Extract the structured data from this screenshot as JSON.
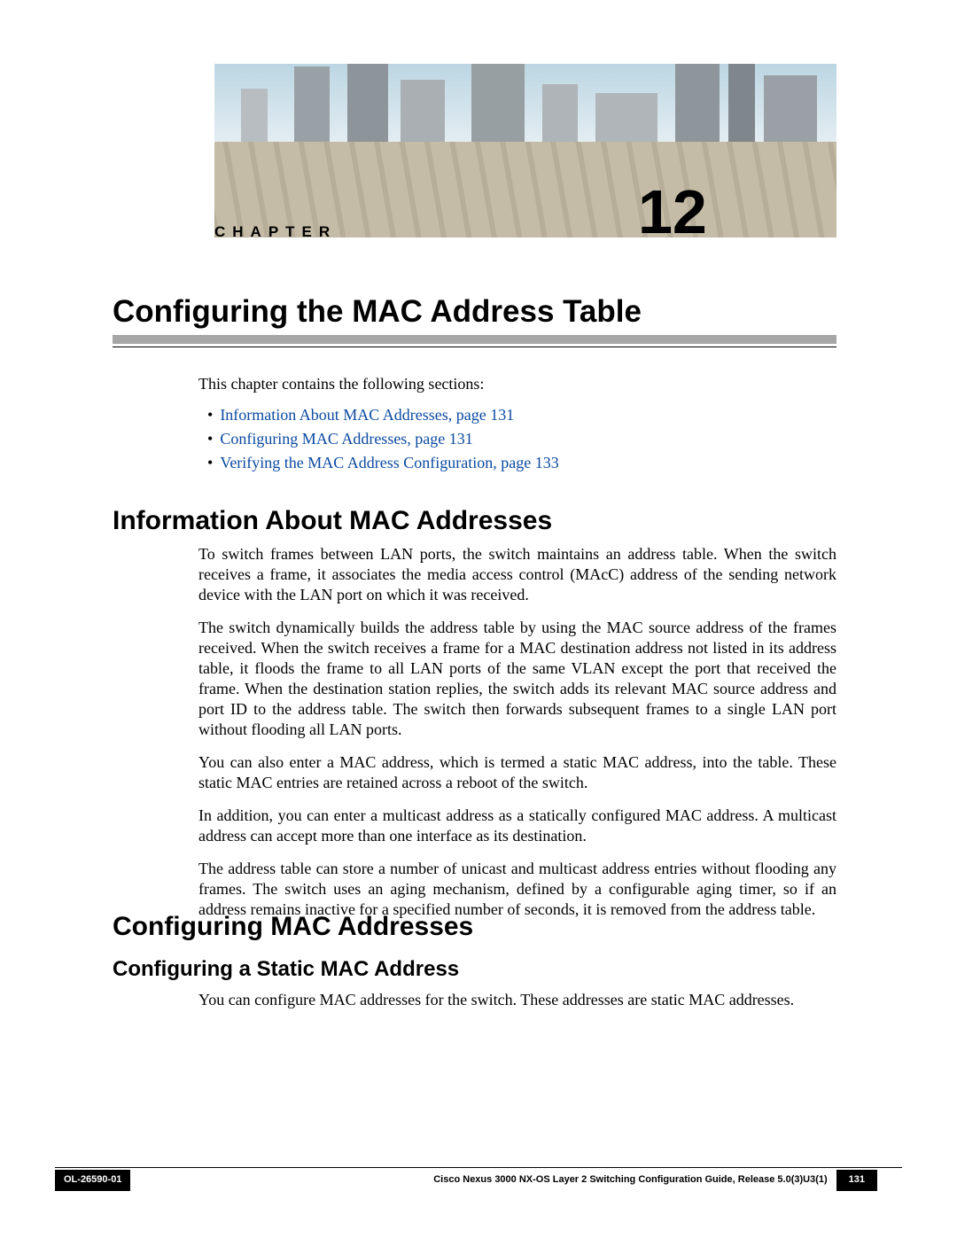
{
  "chapter": {
    "label": "CHAPTER",
    "number": "12"
  },
  "title": "Configuring the MAC Address Table",
  "intro": "This chapter contains the following sections:",
  "toc": [
    {
      "text": "Information About MAC Addresses,  page  131"
    },
    {
      "text": "Configuring MAC Addresses,  page  131"
    },
    {
      "text": "Verifying the MAC Address Configuration,  page  133"
    }
  ],
  "section1": {
    "heading": "Information About MAC Addresses",
    "paragraphs": [
      "To switch frames between LAN ports, the switch maintains an address table. When the switch receives a frame, it associates the media access control (MAcC) address of the sending network device with the LAN port on which it was received.",
      "The switch dynamically builds the address table by using the MAC source address of the frames received. When the switch receives a frame for a MAC destination address not listed in its address table, it floods the frame to all LAN ports of the same VLAN except the port that received the frame. When the destination station replies, the switch adds its relevant MAC source address and port ID to the address table. The switch then forwards subsequent frames to a single LAN port without flooding all LAN ports.",
      "You can also enter a MAC address, which is termed a static MAC address, into the table. These static MAC entries are retained across a reboot of the switch.",
      "In addition, you can enter a multicast address as a statically configured MAC address. A multicast address can accept more than one interface as its destination.",
      "The address table can store a number of unicast and multicast address entries without flooding any frames. The switch uses an aging mechanism, defined by a configurable aging timer, so if an address remains inactive for a specified number of seconds, it is removed from the address table."
    ]
  },
  "section2": {
    "heading": "Configuring MAC Addresses",
    "subheading": "Configuring a Static MAC Address",
    "paragraph": "You can configure MAC addresses for the switch. These addresses are static MAC addresses."
  },
  "footer": {
    "doc_id": "OL-26590-01",
    "guide": "Cisco Nexus 3000 NX-OS Layer 2 Switching Configuration Guide, Release 5.0(3)U3(1)",
    "page": "131"
  }
}
